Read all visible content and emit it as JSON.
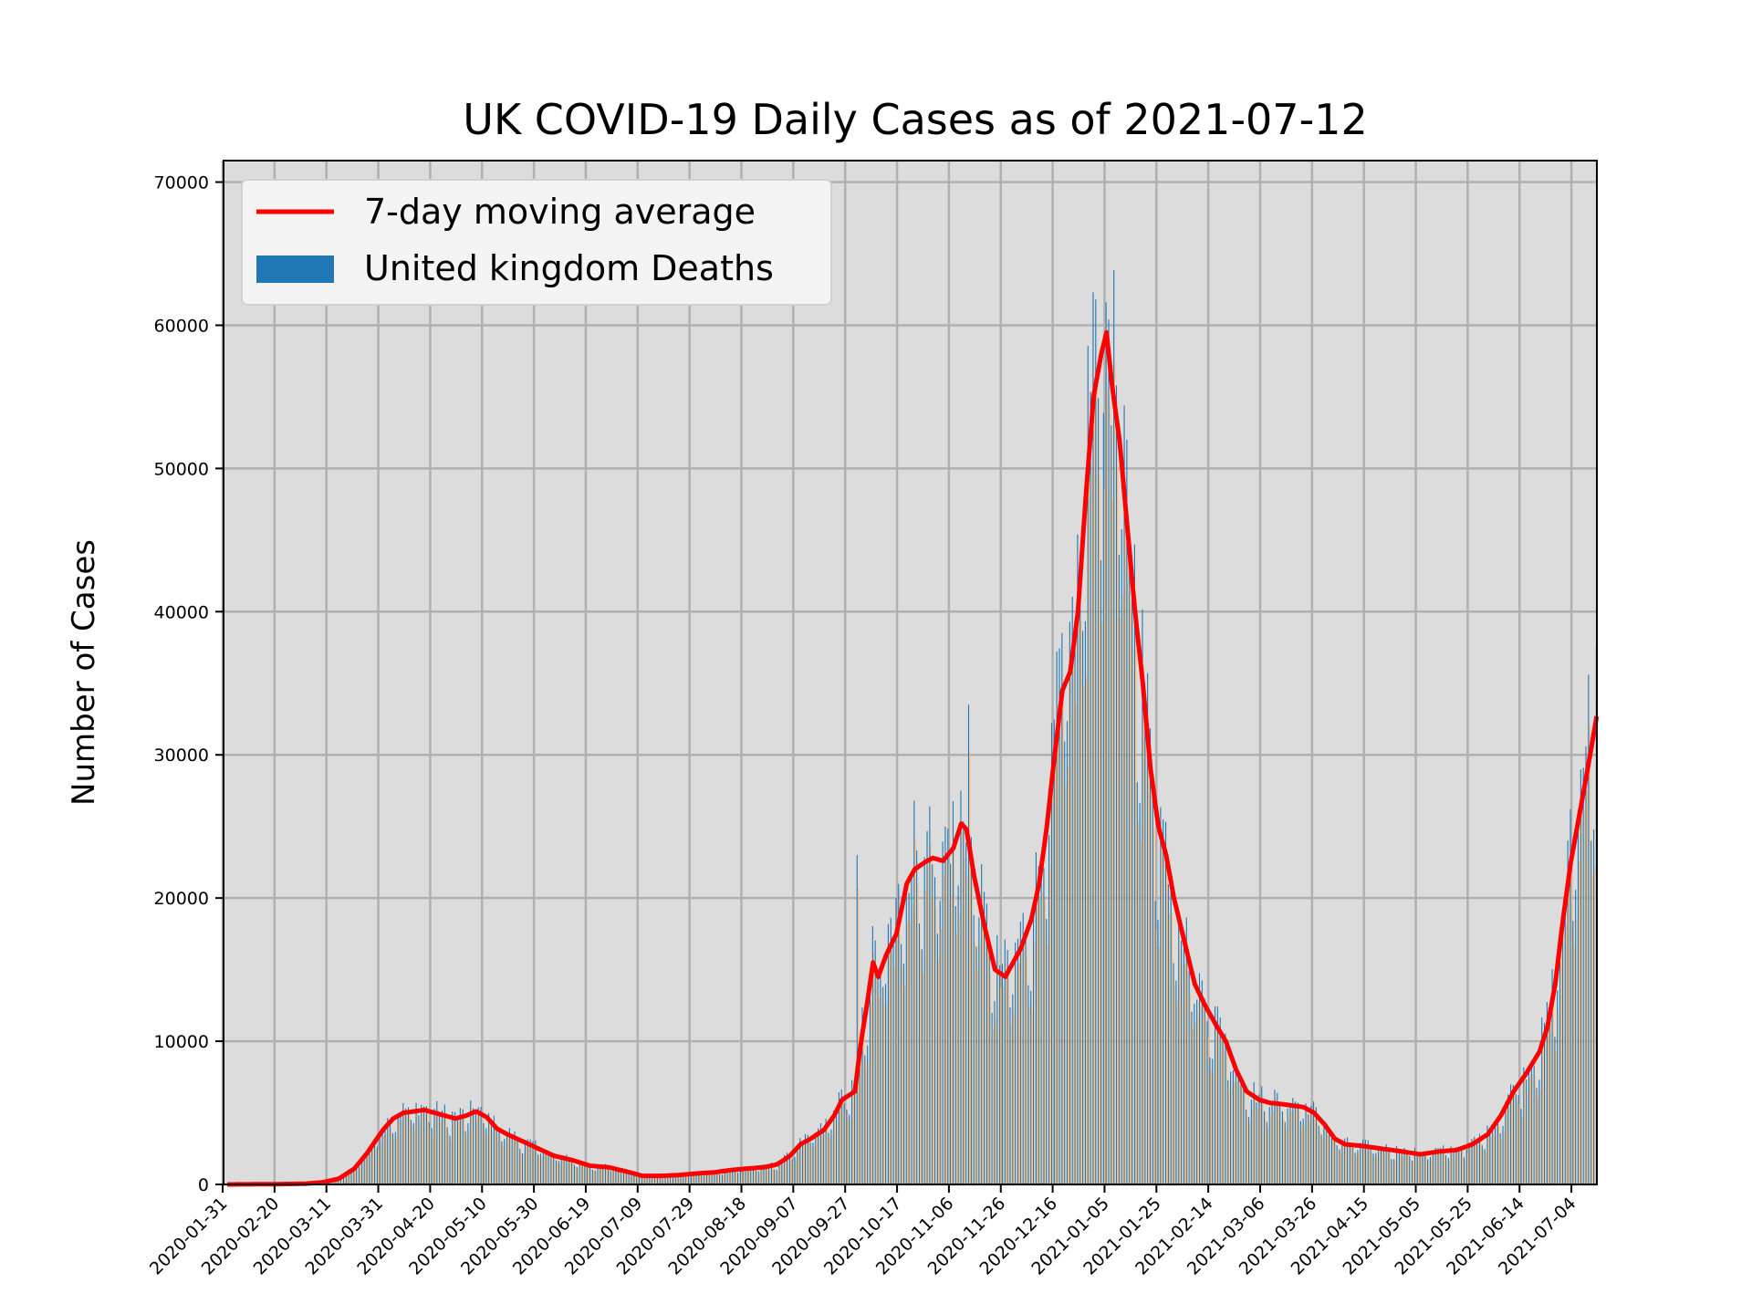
{
  "chart_data": {
    "type": "bar",
    "title": "UK COVID-19 Daily Cases as of 2021-07-12",
    "xlabel": "",
    "ylabel": "Number of Cases",
    "ylim": [
      0,
      71500
    ],
    "yticks": [
      0,
      10000,
      20000,
      30000,
      40000,
      50000,
      60000,
      70000
    ],
    "x_range": [
      "2020-01-31",
      "2021-07-12"
    ],
    "xticks": [
      "2020-01-31",
      "2020-02-20",
      "2020-03-11",
      "2020-03-31",
      "2020-04-20",
      "2020-05-10",
      "2020-05-30",
      "2020-06-19",
      "2020-07-09",
      "2020-07-29",
      "2020-08-18",
      "2020-09-07",
      "2020-09-27",
      "2020-10-17",
      "2020-11-06",
      "2020-11-26",
      "2020-12-16",
      "2021-01-05",
      "2021-01-25",
      "2021-02-14",
      "2021-03-06",
      "2021-03-26",
      "2021-04-15",
      "2021-05-05",
      "2021-05-25",
      "2021-06-14",
      "2021-07-04"
    ],
    "grid": true,
    "background": "#dcdcdc",
    "legend_position": "top-left",
    "series": [
      {
        "name": "7-day moving average",
        "kind": "line",
        "color": "#ff0000",
        "points": [
          [
            "2020-01-31",
            0
          ],
          [
            "2020-02-20",
            20
          ],
          [
            "2020-03-01",
            50
          ],
          [
            "2020-03-08",
            150
          ],
          [
            "2020-03-14",
            400
          ],
          [
            "2020-03-20",
            1100
          ],
          [
            "2020-03-25",
            2200
          ],
          [
            "2020-03-31",
            3800
          ],
          [
            "2020-04-04",
            4600
          ],
          [
            "2020-04-08",
            5000
          ],
          [
            "2020-04-12",
            5100
          ],
          [
            "2020-04-16",
            5200
          ],
          [
            "2020-04-20",
            5000
          ],
          [
            "2020-04-24",
            4800
          ],
          [
            "2020-04-28",
            4600
          ],
          [
            "2020-05-02",
            4800
          ],
          [
            "2020-05-06",
            5100
          ],
          [
            "2020-05-10",
            4700
          ],
          [
            "2020-05-14",
            3900
          ],
          [
            "2020-05-18",
            3500
          ],
          [
            "2020-05-24",
            3000
          ],
          [
            "2020-05-30",
            2500
          ],
          [
            "2020-06-05",
            2000
          ],
          [
            "2020-06-12",
            1700
          ],
          [
            "2020-06-19",
            1300
          ],
          [
            "2020-06-26",
            1200
          ],
          [
            "2020-07-03",
            900
          ],
          [
            "2020-07-09",
            600
          ],
          [
            "2020-07-16",
            600
          ],
          [
            "2020-07-23",
            650
          ],
          [
            "2020-07-29",
            750
          ],
          [
            "2020-08-06",
            850
          ],
          [
            "2020-08-12",
            1000
          ],
          [
            "2020-08-18",
            1100
          ],
          [
            "2020-08-25",
            1200
          ],
          [
            "2020-08-30",
            1400
          ],
          [
            "2020-09-04",
            2000
          ],
          [
            "2020-09-08",
            2800
          ],
          [
            "2020-09-12",
            3200
          ],
          [
            "2020-09-17",
            3800
          ],
          [
            "2020-09-21",
            4800
          ],
          [
            "2020-09-24",
            5900
          ],
          [
            "2020-09-29",
            6500
          ],
          [
            "2020-10-01",
            9500
          ],
          [
            "2020-10-04",
            13000
          ],
          [
            "2020-10-06",
            15500
          ],
          [
            "2020-10-08",
            14500
          ],
          [
            "2020-10-11",
            16000
          ],
          [
            "2020-10-15",
            17500
          ],
          [
            "2020-10-19",
            21000
          ],
          [
            "2020-10-22",
            22000
          ],
          [
            "2020-10-26",
            22500
          ],
          [
            "2020-10-29",
            22800
          ],
          [
            "2020-11-02",
            22600
          ],
          [
            "2020-11-06",
            23500
          ],
          [
            "2020-11-09",
            25200
          ],
          [
            "2020-11-11",
            24800
          ],
          [
            "2020-11-14",
            21500
          ],
          [
            "2020-11-18",
            18000
          ],
          [
            "2020-11-22",
            15000
          ],
          [
            "2020-11-26",
            14500
          ],
          [
            "2020-11-29",
            15500
          ],
          [
            "2020-12-02",
            16500
          ],
          [
            "2020-12-06",
            18500
          ],
          [
            "2020-12-09",
            21000
          ],
          [
            "2020-12-12",
            25000
          ],
          [
            "2020-12-15",
            30000
          ],
          [
            "2020-12-18",
            34500
          ],
          [
            "2020-12-21",
            35800
          ],
          [
            "2020-12-24",
            40000
          ],
          [
            "2020-12-27",
            48000
          ],
          [
            "2020-12-30",
            55000
          ],
          [
            "2021-01-02",
            58000
          ],
          [
            "2021-01-04",
            59500
          ],
          [
            "2021-01-06",
            56000
          ],
          [
            "2021-01-09",
            52000
          ],
          [
            "2021-01-12",
            46000
          ],
          [
            "2021-01-15",
            40000
          ],
          [
            "2021-01-18",
            35000
          ],
          [
            "2021-01-21",
            29000
          ],
          [
            "2021-01-24",
            25000
          ],
          [
            "2021-01-27",
            23000
          ],
          [
            "2021-01-30",
            20000
          ],
          [
            "2021-02-03",
            17000
          ],
          [
            "2021-02-07",
            14000
          ],
          [
            "2021-02-11",
            12500
          ],
          [
            "2021-02-15",
            11200
          ],
          [
            "2021-02-19",
            10000
          ],
          [
            "2021-02-23",
            8000
          ],
          [
            "2021-02-27",
            6500
          ],
          [
            "2021-03-04",
            5900
          ],
          [
            "2021-03-08",
            5700
          ],
          [
            "2021-03-13",
            5600
          ],
          [
            "2021-03-17",
            5500
          ],
          [
            "2021-03-21",
            5400
          ],
          [
            "2021-03-25",
            5000
          ],
          [
            "2021-03-29",
            4200
          ],
          [
            "2021-04-02",
            3200
          ],
          [
            "2021-04-06",
            2800
          ],
          [
            "2021-04-12",
            2700
          ],
          [
            "2021-04-20",
            2500
          ],
          [
            "2021-04-28",
            2300
          ],
          [
            "2021-05-05",
            2100
          ],
          [
            "2021-05-12",
            2300
          ],
          [
            "2021-05-19",
            2400
          ],
          [
            "2021-05-25",
            2800
          ],
          [
            "2021-05-31",
            3500
          ],
          [
            "2021-06-05",
            4800
          ],
          [
            "2021-06-10",
            6500
          ],
          [
            "2021-06-15",
            7800
          ],
          [
            "2021-06-20",
            9300
          ],
          [
            "2021-06-23",
            11000
          ],
          [
            "2021-06-26",
            14000
          ],
          [
            "2021-06-29",
            18500
          ],
          [
            "2021-07-02",
            22500
          ],
          [
            "2021-07-05",
            25500
          ],
          [
            "2021-07-08",
            28500
          ],
          [
            "2021-07-12",
            32700
          ]
        ]
      },
      {
        "name": "United kingdom Deaths",
        "kind": "bar",
        "color": "#1f77b4",
        "alt_color": "#ffbb78",
        "note_peaks": [
          [
            "2020-09-30",
            23000
          ],
          [
            "2020-10-22",
            26800
          ],
          [
            "2020-11-12",
            33500
          ],
          [
            "2020-12-30",
            62300
          ],
          [
            "2021-01-08",
            55800
          ],
          [
            "2021-07-09",
            35600
          ]
        ]
      }
    ]
  }
}
